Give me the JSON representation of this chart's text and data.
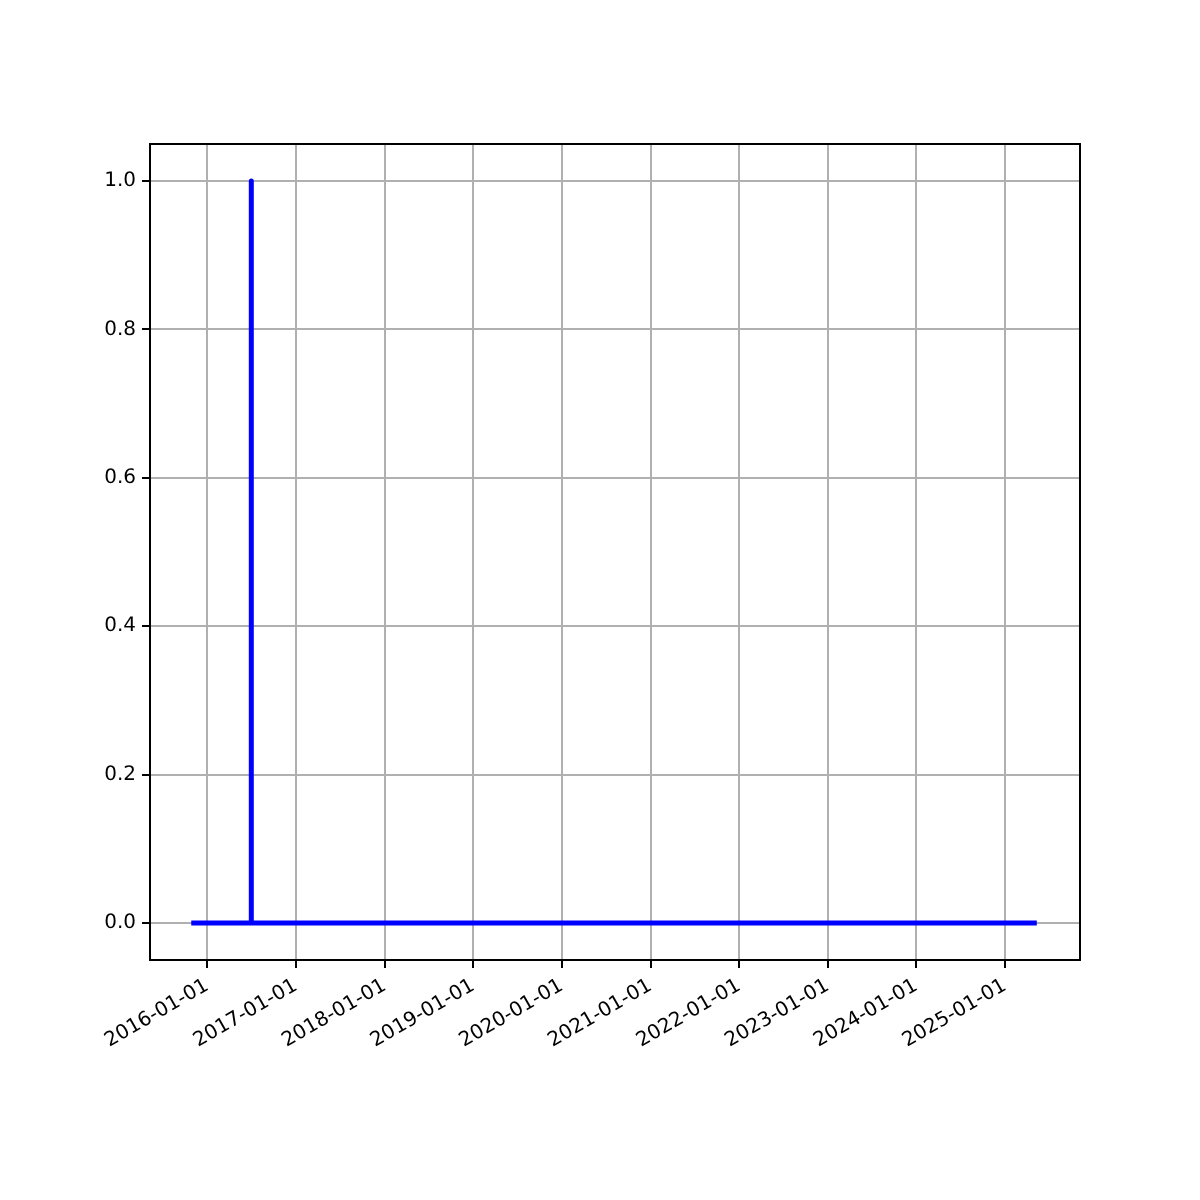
{
  "chart_data": {
    "type": "line",
    "x": [
      "2015-10-27",
      "2016-06-29",
      "2016-06-30",
      "2016-07-01",
      "2025-05-12"
    ],
    "series": [
      {
        "color": "#0000ff",
        "values": [
          0,
          0,
          1,
          0,
          0
        ]
      }
    ],
    "xlim": [
      "2015-05-10",
      "2025-11-06"
    ],
    "xticks": [
      "2016-01-01",
      "2017-01-01",
      "2018-01-01",
      "2019-01-01",
      "2020-01-01",
      "2021-01-01",
      "2022-01-01",
      "2023-01-01",
      "2024-01-01",
      "2025-01-01"
    ],
    "ylim": [
      -0.05,
      1.05
    ],
    "yticks": [
      {
        "value": 0,
        "label": "0.0"
      },
      {
        "value": 0.2,
        "label": "0.2"
      },
      {
        "value": 0.4,
        "label": "0.4"
      },
      {
        "value": 0.6,
        "label": "0.6"
      },
      {
        "value": 0.8,
        "label": "0.8"
      },
      {
        "value": 1,
        "label": "1.0"
      }
    ],
    "grid": true,
    "marker": "none",
    "line_style": "solid",
    "legend": false
  }
}
